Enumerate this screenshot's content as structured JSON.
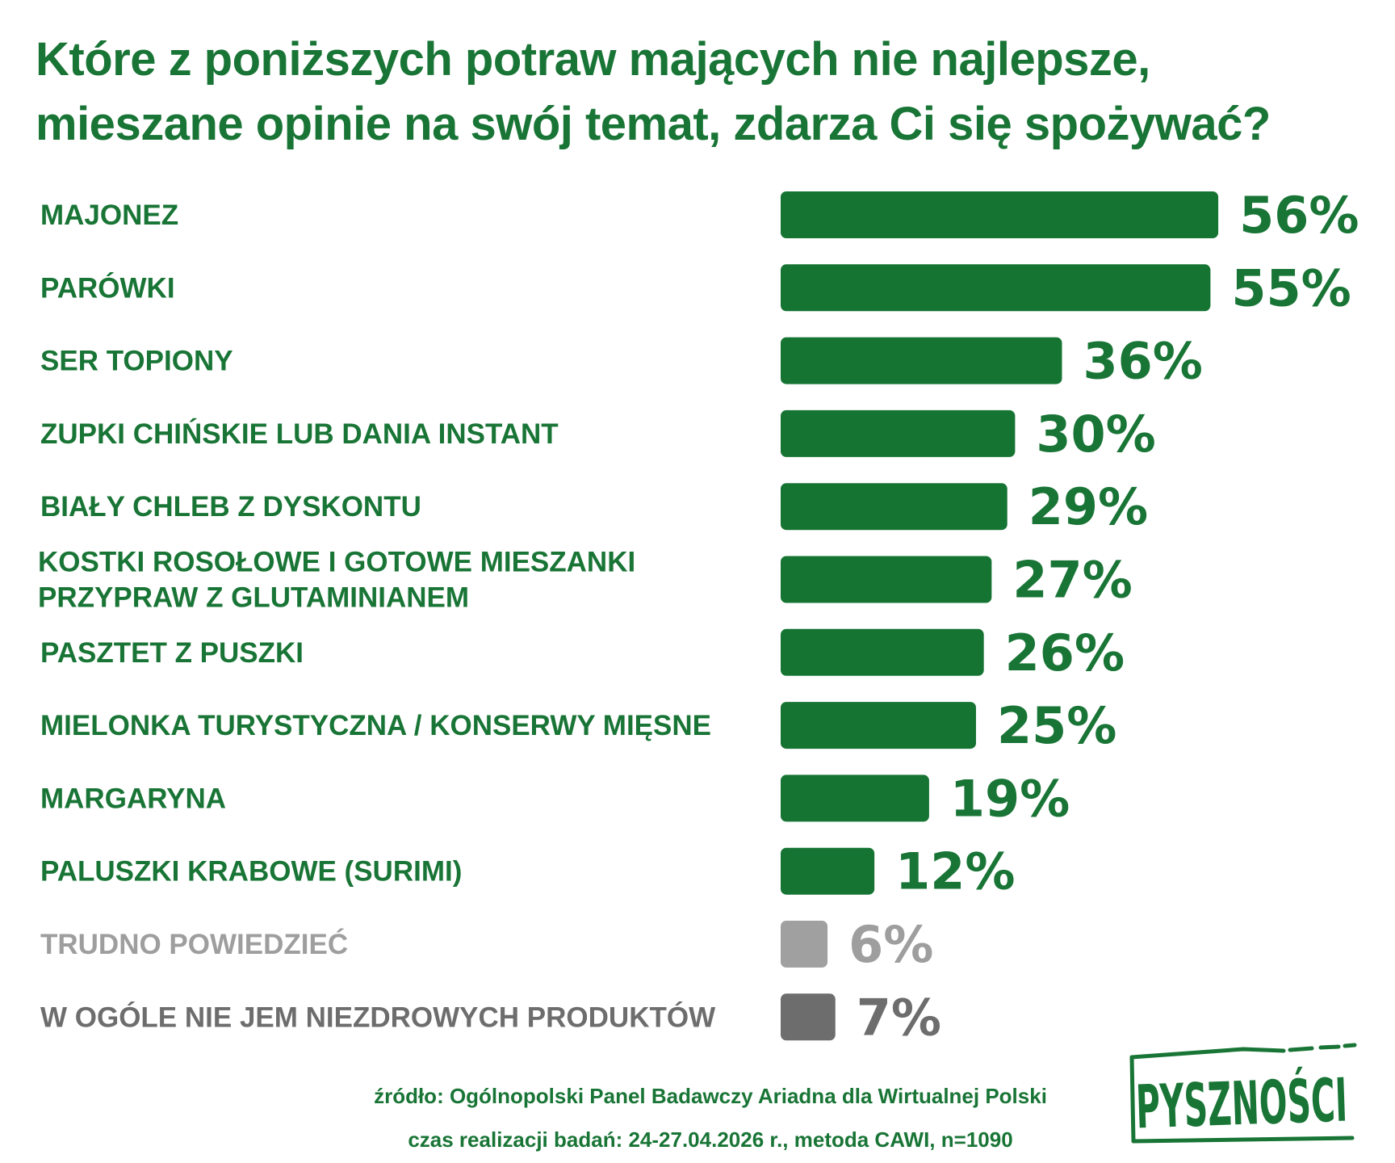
{
  "title": {
    "line1": "Które z poniższych potraw mających nie najlepsze,",
    "line2": "mieszane opinie na swój temat, zdarza Ci się spożywać?"
  },
  "chart_data": {
    "type": "bar",
    "orientation": "horizontal",
    "title": "Które z poniższych potraw mających nie najlepsze, mieszane opinie na swój temat, zdarza Ci się spożywać?",
    "categories": [
      "MAJONEZ",
      "PARÓWKI",
      "SER TOPIONY",
      "ZUPKI CHIŃSKIE LUB DANIA INSTANT",
      "BIAŁY CHLEB Z DYSKONTU",
      "KOSTKI ROSOŁOWE I GOTOWE MIESZANKI PRZYPRAW Z GLUTAMINIANEM",
      "PASZTET Z PUSZKI",
      "MIELONKA TURYSTYCZNA / KONSERWY MIĘSNE",
      "MARGARYNA",
      "PALUSZKI KRABOWE (SURIMI)",
      "TRUDNO POWIEDZIEĆ",
      "W OGÓLE NIE JEM NIEZDROWYCH PRODUKTÓW"
    ],
    "label_lines": [
      [
        "MAJONEZ"
      ],
      [
        "PARÓWKI"
      ],
      [
        "SER TOPIONY"
      ],
      [
        "ZUPKI CHIŃSKIE LUB DANIA INSTANT"
      ],
      [
        "BIAŁY CHLEB Z DYSKONTU"
      ],
      [
        "KOSTKI ROSOŁOWE I GOTOWE MIESZANKI",
        "PRZYPRAW Z GLUTAMINIANEM"
      ],
      [
        "PASZTET Z PUSZKI"
      ],
      [
        "MIELONKA TURYSTYCZNA / KONSERWY MIĘSNE"
      ],
      [
        "MARGARYNA"
      ],
      [
        "PALUSZKI KRABOWE (SURIMI)"
      ],
      [
        "TRUDNO POWIEDZIEĆ"
      ],
      [
        "W OGÓLE NIE JEM NIEZDROWYCH PRODUKTÓW"
      ]
    ],
    "values": [
      56,
      55,
      36,
      30,
      29,
      27,
      26,
      25,
      19,
      12,
      6,
      7
    ],
    "value_labels": [
      "56%",
      "55%",
      "36%",
      "30%",
      "29%",
      "27%",
      "26%",
      "25%",
      "19%",
      "12%",
      "6%",
      "7%"
    ],
    "bar_colors": [
      "#167433",
      "#167433",
      "#167433",
      "#167433",
      "#167433",
      "#167433",
      "#167433",
      "#167433",
      "#167433",
      "#167433",
      "#a0a0a0",
      "#6d6d6d"
    ],
    "label_colors": [
      "#197536",
      "#197536",
      "#197536",
      "#197536",
      "#197536",
      "#197536",
      "#197536",
      "#197536",
      "#197536",
      "#197536",
      "#9e9e9e",
      "#6d6d6d"
    ],
    "unit": "%",
    "grid": false,
    "legend": "none"
  },
  "source": {
    "line1": "źródło: Ogólnopolski Panel Badawczy Ariadna dla Wirtualnej Polski",
    "line2": "czas realizacji badań: 24-27.04.2026 r., metoda CAWI, n=1090"
  },
  "logo": {
    "text": "PYSZNOŚCI"
  },
  "colors": {
    "primary_green": "#197536",
    "gray_light": "#a0a0a0",
    "gray_dark": "#6d6d6d"
  }
}
